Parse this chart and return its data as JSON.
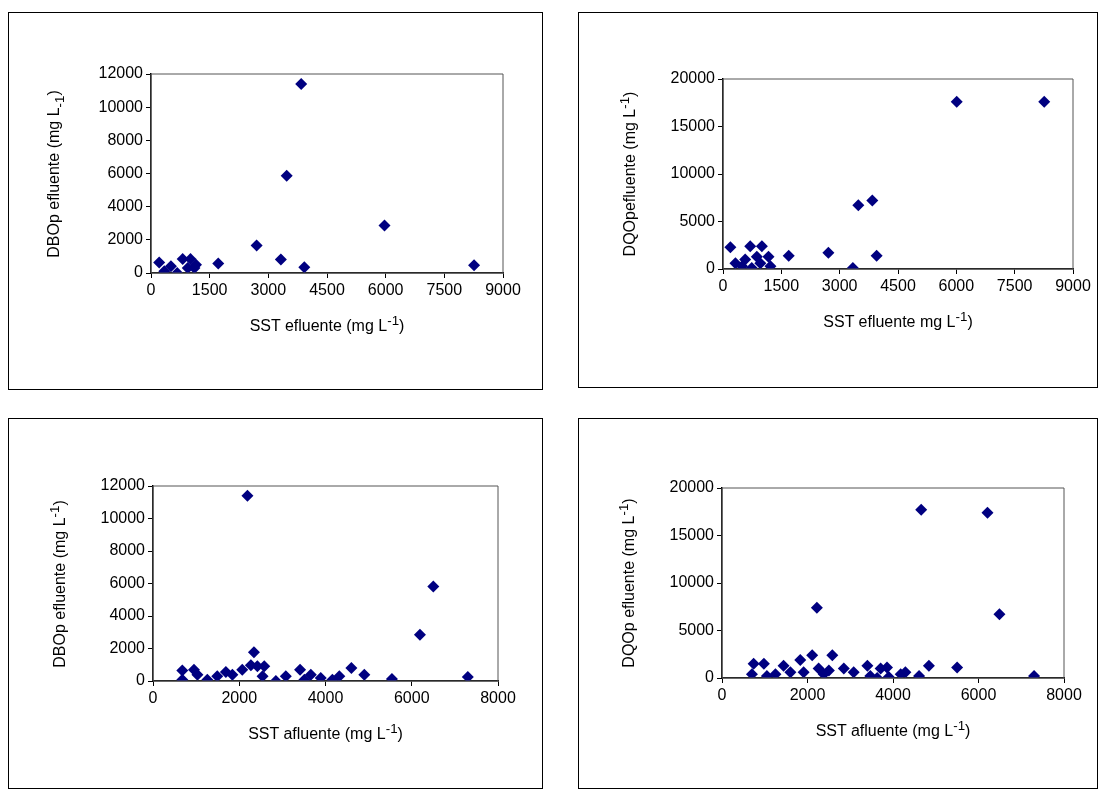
{
  "chart_data": [
    {
      "type": "scatter",
      "xlabel": "SST efluente (mg L$^{-1}$)",
      "ylabel": "DBOp efluente (mg L$_{-1}$)",
      "marker": "diamond",
      "grid": false,
      "legend": false,
      "xlim": [
        0,
        9000
      ],
      "xticks": [
        0,
        1500,
        3000,
        4500,
        6000,
        7500,
        9000
      ],
      "ylim": [
        0,
        12000
      ],
      "yticks": [
        0,
        2000,
        4000,
        6000,
        8000,
        10000,
        12000
      ],
      "series": [
        {
          "color": "#000080",
          "x": [
            3840,
            3470,
            5970,
            2700,
            3320,
            3920,
            1720,
            8260,
            210,
            430,
            670,
            810,
            1010,
            1150,
            510,
            940,
            1110,
            340
          ],
          "values": [
            11400,
            5860,
            2860,
            1660,
            820,
            340,
            580,
            460,
            640,
            null,
            0,
            840,
            840,
            500,
            400,
            300,
            300,
            100
          ]
        }
      ]
    },
    {
      "type": "scatter",
      "xlabel": "SST efluente mg L$^{-1}$)",
      "ylabel": "DQOpefluente (mg L$^{-1}$)",
      "marker": "diamond",
      "grid": false,
      "legend": false,
      "xlim": [
        0,
        9000
      ],
      "xticks": [
        0,
        1500,
        3000,
        4500,
        6000,
        7500,
        9000
      ],
      "ylim": [
        0,
        20000
      ],
      "yticks": [
        0,
        5000,
        10000,
        15000,
        20000
      ],
      "series": [
        {
          "color": "#000080",
          "x": [
            6010,
            8260,
            3480,
            3840,
            3950,
            3340,
            2710,
            1690,
            190,
            320,
            490,
            700,
            1000,
            740,
            1170,
            1220,
            570,
            870,
            960
          ],
          "values": [
            17600,
            17600,
            6700,
            7200,
            1400,
            100,
            1700,
            1400,
            2300,
            600,
            300,
            2400,
            2400,
            100,
            1300,
            300,
            1000,
            1300,
            600
          ]
        }
      ]
    },
    {
      "type": "scatter",
      "xlabel": "SST afluente (mg L$^{-1}$)",
      "ylabel": "DBOp efluente (mg L$^{-1}$)",
      "marker": "diamond",
      "grid": false,
      "legend": false,
      "xlim": [
        0,
        8000
      ],
      "xticks": [
        0,
        2000,
        4000,
        6000,
        8000
      ],
      "ylim": [
        0,
        12000
      ],
      "yticks": [
        0,
        2000,
        4000,
        6000,
        8000,
        10000,
        12000
      ],
      "series": [
        {
          "color": "#000080",
          "x": [
            2190,
            6500,
            6190,
            2340,
            7300,
            5540,
            4600,
            4900,
            2850,
            3080,
            3410,
            3510,
            3660,
            3890,
            4160,
            4320,
            680,
            680,
            950,
            1030,
            1260,
            1490,
            1690,
            1840,
            2070,
            2270,
            2420,
            2580,
            2540
          ],
          "values": [
            11400,
            5820,
            2850,
            1770,
            250,
            120,
            800,
            390,
            0,
            290,
            700,
            80,
            390,
            190,
            80,
            290,
            640,
            80,
            700,
            390,
            80,
            290,
            560,
            390,
            700,
            970,
            910,
            910,
            290
          ]
        }
      ]
    },
    {
      "type": "scatter",
      "xlabel": "SST afluente (mg L$^{-1}$)",
      "ylabel": "DQOp efluente (mg L$^{-1}$)",
      "marker": "diamond",
      "grid": false,
      "legend": false,
      "xlim": [
        0,
        8000
      ],
      "xticks": [
        0,
        2000,
        4000,
        6000,
        8000
      ],
      "ylim": [
        0,
        20000
      ],
      "yticks": [
        0,
        5000,
        10000,
        15000,
        20000
      ],
      "series": [
        {
          "color": "#000080",
          "x": [
            4660,
            6210,
            2220,
            6490,
            7300,
            5500,
            4840,
            4610,
            2580,
            2110,
            1830,
            1440,
            740,
            980,
            700,
            1050,
            1250,
            1600,
            1910,
            2260,
            2380,
            2500,
            2850,
            3080,
            3400,
            3470,
            3630,
            3710,
            3860,
            3900,
            4180,
            4290
          ],
          "values": [
            17700,
            17400,
            7400,
            6700,
            200,
            1100,
            1300,
            200,
            2400,
            2400,
            1900,
            1300,
            1500,
            1500,
            400,
            200,
            400,
            600,
            600,
            1000,
            400,
            800,
            1000,
            600,
            1300,
            200,
            0,
            1000,
            1100,
            100,
            400,
            600
          ]
        }
      ]
    }
  ]
}
